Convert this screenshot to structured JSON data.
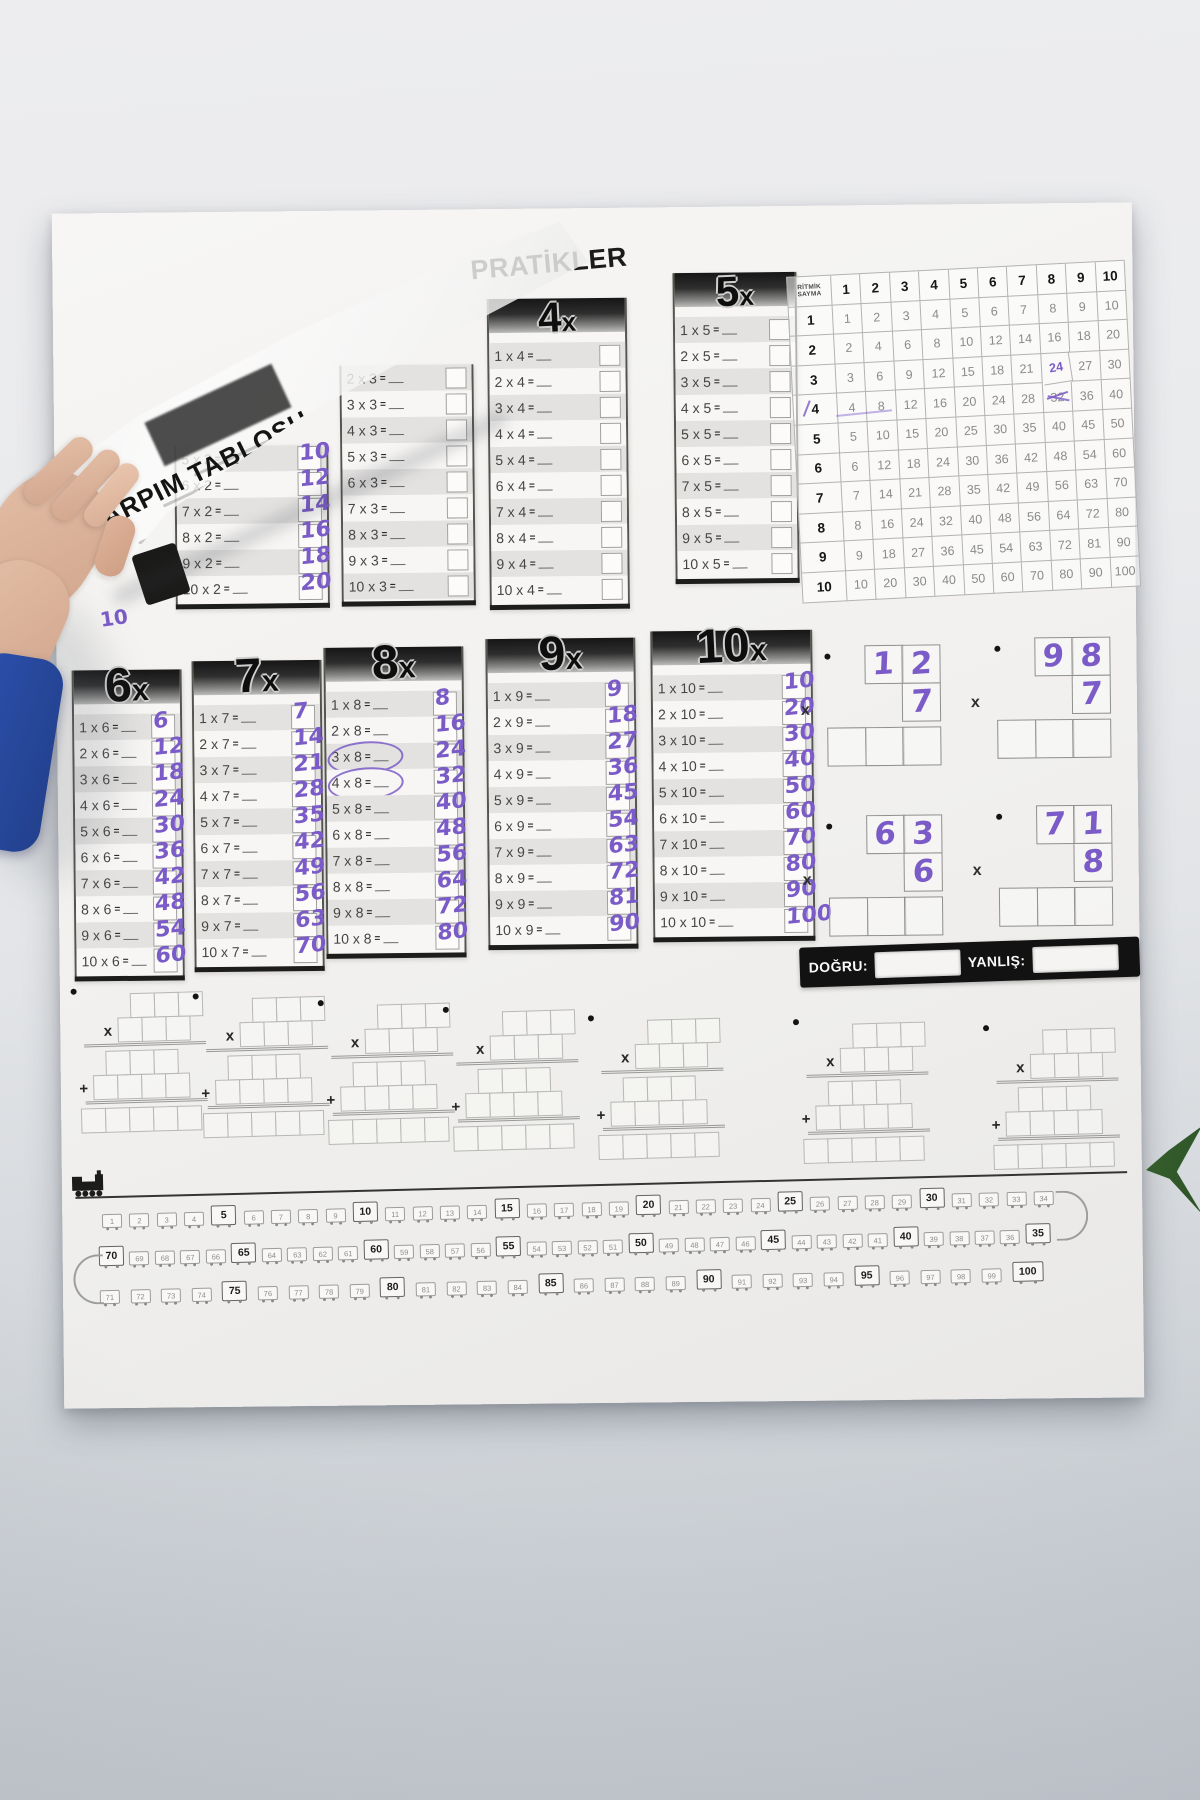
{
  "scene": {
    "title": "PRATİKLER",
    "peel_title": "ÇARPIM TABLOSU",
    "equals": "=",
    "times_glyph": "x",
    "stray_answer": "10",
    "colors": {
      "ink": "#7a5bc7",
      "sleeve": "#2d50ad",
      "leaf": "#375f2e",
      "poster": "#f4f3f1"
    }
  },
  "grid": {
    "corner_label": "RİTMİK SAYMA",
    "col_headers": [
      "1",
      "2",
      "3",
      "4",
      "5",
      "6",
      "7",
      "8",
      "9",
      "10"
    ],
    "row_headers": [
      "1",
      "2",
      "3",
      "4",
      "5",
      "6",
      "7",
      "8",
      "9",
      "10"
    ],
    "cells": [
      [
        1,
        2,
        3,
        4,
        5,
        6,
        7,
        8,
        9,
        10
      ],
      [
        2,
        4,
        6,
        8,
        10,
        12,
        14,
        16,
        18,
        20
      ],
      [
        3,
        6,
        9,
        12,
        15,
        18,
        21,
        24,
        27,
        30
      ],
      [
        4,
        8,
        12,
        16,
        20,
        24,
        28,
        32,
        36,
        40
      ],
      [
        5,
        10,
        15,
        20,
        25,
        30,
        35,
        40,
        45,
        50
      ],
      [
        6,
        12,
        18,
        24,
        30,
        36,
        42,
        48,
        54,
        60
      ],
      [
        7,
        14,
        21,
        28,
        35,
        42,
        49,
        56,
        63,
        70
      ],
      [
        8,
        16,
        24,
        32,
        40,
        48,
        56,
        64,
        72,
        80
      ],
      [
        9,
        18,
        27,
        36,
        45,
        54,
        63,
        72,
        81,
        90
      ],
      [
        10,
        20,
        30,
        40,
        50,
        60,
        70,
        80,
        90,
        100
      ]
    ],
    "handwritten": [
      {
        "row": 3,
        "col": 8,
        "style": "traced"
      },
      {
        "row": 4,
        "col": 8,
        "style": "scribbled"
      },
      {
        "row": 4,
        "col": 0,
        "style": "marked"
      },
      {
        "row": 4,
        "col": 1,
        "style": "streak"
      }
    ]
  },
  "top_columns": [
    {
      "id": "2x",
      "header_num": "",
      "rows": [
        {
          "eq": "5 x 2",
          "ans": "10"
        },
        {
          "eq": "6 x 2",
          "ans": "12"
        },
        {
          "eq": "7 x 2",
          "ans": "14"
        },
        {
          "eq": "8 x 2",
          "ans": "16"
        },
        {
          "eq": "9 x 2",
          "ans": "18"
        },
        {
          "eq": "10 x 2",
          "ans": "20"
        }
      ]
    },
    {
      "id": "3x",
      "header_num": "",
      "rows": [
        {
          "eq": "2 x 3",
          "ans": ""
        },
        {
          "eq": "3 x 3",
          "ans": ""
        },
        {
          "eq": "4 x 3",
          "ans": ""
        },
        {
          "eq": "5 x 3",
          "ans": ""
        },
        {
          "eq": "6 x 3",
          "ans": ""
        },
        {
          "eq": "7 x 3",
          "ans": ""
        },
        {
          "eq": "8 x 3",
          "ans": ""
        },
        {
          "eq": "9 x 3",
          "ans": ""
        },
        {
          "eq": "10 x 3",
          "ans": ""
        }
      ]
    },
    {
      "id": "4x",
      "header_num": "4",
      "rows": [
        {
          "eq": "1 x 4",
          "ans": ""
        },
        {
          "eq": "2 x 4",
          "ans": ""
        },
        {
          "eq": "3 x 4",
          "ans": ""
        },
        {
          "eq": "4 x 4",
          "ans": ""
        },
        {
          "eq": "5 x 4",
          "ans": ""
        },
        {
          "eq": "6 x 4",
          "ans": ""
        },
        {
          "eq": "7 x 4",
          "ans": ""
        },
        {
          "eq": "8 x 4",
          "ans": ""
        },
        {
          "eq": "9 x 4",
          "ans": ""
        },
        {
          "eq": "10 x 4",
          "ans": ""
        }
      ]
    },
    {
      "id": "5x",
      "header_num": "5",
      "rows": [
        {
          "eq": "1 x 5",
          "ans": ""
        },
        {
          "eq": "2 x 5",
          "ans": ""
        },
        {
          "eq": "3 x 5",
          "ans": ""
        },
        {
          "eq": "4 x 5",
          "ans": ""
        },
        {
          "eq": "5 x 5",
          "ans": ""
        },
        {
          "eq": "6 x 5",
          "ans": ""
        },
        {
          "eq": "7 x 5",
          "ans": ""
        },
        {
          "eq": "8 x 5",
          "ans": ""
        },
        {
          "eq": "9 x 5",
          "ans": ""
        },
        {
          "eq": "10 x 5",
          "ans": ""
        }
      ]
    }
  ],
  "bottom_columns": [
    {
      "id": "6x",
      "header_num": "6",
      "rows": [
        {
          "eq": "1 x 6",
          "ans": "6"
        },
        {
          "eq": "2 x 6",
          "ans": "12"
        },
        {
          "eq": "3 x 6",
          "ans": "18"
        },
        {
          "eq": "4 x 6",
          "ans": "24"
        },
        {
          "eq": "5 x 6",
          "ans": "30"
        },
        {
          "eq": "6 x 6",
          "ans": "36"
        },
        {
          "eq": "7 x 6",
          "ans": "42"
        },
        {
          "eq": "8 x 6",
          "ans": "48"
        },
        {
          "eq": "9 x 6",
          "ans": "54"
        },
        {
          "eq": "10 x 6",
          "ans": "60"
        }
      ]
    },
    {
      "id": "7x",
      "header_num": "7",
      "rows": [
        {
          "eq": "1 x 7",
          "ans": "7"
        },
        {
          "eq": "2 x 7",
          "ans": "14"
        },
        {
          "eq": "3 x 7",
          "ans": "21"
        },
        {
          "eq": "4 x 7",
          "ans": "28"
        },
        {
          "eq": "5 x 7",
          "ans": "35"
        },
        {
          "eq": "6 x 7",
          "ans": "42"
        },
        {
          "eq": "7 x 7",
          "ans": "49"
        },
        {
          "eq": "8 x 7",
          "ans": "56"
        },
        {
          "eq": "9 x 7",
          "ans": "63"
        },
        {
          "eq": "10 x 7",
          "ans": "70"
        }
      ]
    },
    {
      "id": "8x",
      "header_num": "8",
      "rows": [
        {
          "eq": "1 x 8",
          "ans": "8"
        },
        {
          "eq": "2 x 8",
          "ans": "16"
        },
        {
          "eq": "3 x 8",
          "ans": "24",
          "circled": true,
          "underlined": true
        },
        {
          "eq": "4 x 8",
          "ans": "32",
          "circled": true
        },
        {
          "eq": "5 x 8",
          "ans": "40"
        },
        {
          "eq": "6 x 8",
          "ans": "48"
        },
        {
          "eq": "7 x 8",
          "ans": "56"
        },
        {
          "eq": "8 x 8",
          "ans": "64"
        },
        {
          "eq": "9 x 8",
          "ans": "72"
        },
        {
          "eq": "10 x 8",
          "ans": "80"
        }
      ]
    },
    {
      "id": "9x",
      "header_num": "9",
      "rows": [
        {
          "eq": "1 x 9",
          "ans": "9"
        },
        {
          "eq": "2 x 9",
          "ans": "18"
        },
        {
          "eq": "3 x 9",
          "ans": "27"
        },
        {
          "eq": "4 x 9",
          "ans": "36"
        },
        {
          "eq": "5 x 9",
          "ans": "45"
        },
        {
          "eq": "6 x 9",
          "ans": "54"
        },
        {
          "eq": "7 x 9",
          "ans": "63"
        },
        {
          "eq": "8 x 9",
          "ans": "72"
        },
        {
          "eq": "9 x 9",
          "ans": "81"
        },
        {
          "eq": "10 x 9",
          "ans": "90"
        }
      ]
    },
    {
      "id": "10x",
      "header_num": "10",
      "rows": [
        {
          "eq": "1 x 10",
          "ans": "10"
        },
        {
          "eq": "2 x 10",
          "ans": "20"
        },
        {
          "eq": "3 x 10",
          "ans": "30"
        },
        {
          "eq": "4 x 10",
          "ans": "40"
        },
        {
          "eq": "5 x 10",
          "ans": "50"
        },
        {
          "eq": "6 x 10",
          "ans": "60"
        },
        {
          "eq": "7 x 10",
          "ans": "70"
        },
        {
          "eq": "8 x 10",
          "ans": "80"
        },
        {
          "eq": "9 x 10",
          "ans": "90"
        },
        {
          "eq": "10 x 10",
          "ans": "100"
        }
      ]
    }
  ],
  "practice_problems": [
    {
      "digits_top": [
        "1",
        "2"
      ],
      "digit_bottom": "7",
      "op": "x"
    },
    {
      "digits_top": [
        "9",
        "8"
      ],
      "digit_bottom": "7",
      "op": "x"
    },
    {
      "digits_top": [
        "6",
        "3"
      ],
      "digit_bottom": "6",
      "op": "x"
    },
    {
      "digits_top": [
        "7",
        "1"
      ],
      "digit_bottom": "8",
      "op": "x"
    }
  ],
  "score_bar": {
    "correct_label": "DOĞRU:",
    "wrong_label": "YANLIŞ:"
  },
  "worksheets": {
    "count": 7,
    "multiply_sign": "x",
    "plus_sign": "+"
  },
  "train": {
    "rows": [
      {
        "numbers": [
          1,
          2,
          3,
          4,
          5,
          6,
          7,
          8,
          9,
          10,
          11,
          12,
          13,
          14,
          15,
          16,
          17,
          18,
          19,
          20,
          21,
          22,
          23,
          24,
          25,
          26,
          27,
          28,
          29,
          30,
          31,
          32,
          33,
          34
        ]
      },
      {
        "numbers": [
          70,
          69,
          68,
          67,
          66,
          65,
          64,
          63,
          62,
          61,
          60,
          59,
          58,
          57,
          56,
          55,
          54,
          53,
          52,
          51,
          50,
          49,
          48,
          47,
          46,
          45,
          44,
          43,
          42,
          41,
          40,
          39,
          38,
          37,
          36,
          35
        ]
      },
      {
        "numbers": [
          71,
          72,
          73,
          74,
          75,
          76,
          77,
          78,
          79,
          80,
          81,
          82,
          83,
          84,
          85,
          86,
          87,
          88,
          89,
          90,
          91,
          92,
          93,
          94,
          95,
          96,
          97,
          98,
          99,
          100
        ]
      }
    ]
  }
}
